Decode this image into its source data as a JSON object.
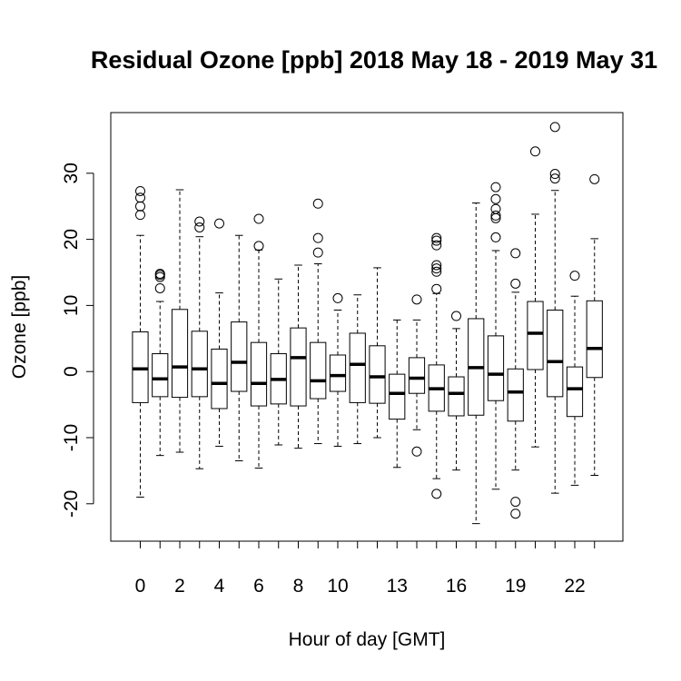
{
  "chart_data": {
    "type": "boxplot",
    "title": "Residual Ozone [ppb] 2018 May 18 - 2019 May 31",
    "xlabel": "Hour of day [GMT]",
    "ylabel": "Ozone [ppb]",
    "ylim": [
      -25.5,
      39
    ],
    "y_ticks": [
      -20,
      -10,
      0,
      10,
      20,
      30
    ],
    "y_tick_labels": [
      "-20",
      "-10",
      "0",
      "10",
      "20",
      "30"
    ],
    "categories": [
      "0",
      "1",
      "2",
      "3",
      "4",
      "5",
      "6",
      "7",
      "8",
      "9",
      "10",
      "11",
      "12",
      "13",
      "14",
      "15",
      "16",
      "17",
      "18",
      "19",
      "20",
      "21",
      "22",
      "23"
    ],
    "x_tick_labels": [
      "0",
      "",
      "2",
      "",
      "4",
      "",
      "6",
      "",
      "8",
      "",
      "10",
      "",
      "",
      "13",
      "",
      "",
      "16",
      "",
      "",
      "19",
      "",
      "",
      "22",
      ""
    ],
    "boxes": [
      {
        "lw": -19,
        "q1": -4.7,
        "med": 0.4,
        "q3": 6.0,
        "uw": 20.6,
        "out": [
          23.7,
          25.0,
          26.3,
          27.3
        ]
      },
      {
        "lw": -12.7,
        "q1": -3.8,
        "med": -1.1,
        "q3": 2.7,
        "uw": 10.6,
        "out": [
          12.6,
          14.3,
          14.6,
          14.8
        ]
      },
      {
        "lw": -12.2,
        "q1": -3.9,
        "med": 0.7,
        "q3": 9.4,
        "uw": 27.5,
        "out": []
      },
      {
        "lw": -14.7,
        "q1": -3.8,
        "med": 0.4,
        "q3": 6.1,
        "uw": 20.4,
        "out": [
          21.8,
          22.7
        ]
      },
      {
        "lw": -11.3,
        "q1": -5.6,
        "med": -1.8,
        "q3": 3.4,
        "uw": 11.9,
        "out": [
          22.4
        ]
      },
      {
        "lw": -13.5,
        "q1": -3.0,
        "med": 1.4,
        "q3": 7.5,
        "uw": 20.6,
        "out": []
      },
      {
        "lw": -14.6,
        "q1": -5.2,
        "med": -1.8,
        "q3": 4.4,
        "uw": 18.4,
        "out": [
          19.0,
          23.1
        ]
      },
      {
        "lw": -11.1,
        "q1": -4.9,
        "med": -1.2,
        "q3": 2.7,
        "uw": 14.0,
        "out": []
      },
      {
        "lw": -11.6,
        "q1": -5.2,
        "med": 2.1,
        "q3": 6.6,
        "uw": 16.1,
        "out": []
      },
      {
        "lw": -10.9,
        "q1": -4.1,
        "med": -1.4,
        "q3": 4.4,
        "uw": 16.3,
        "out": [
          18.0,
          20.2,
          25.4
        ]
      },
      {
        "lw": -11.3,
        "q1": -3.0,
        "med": -0.6,
        "q3": 2.5,
        "uw": 9.3,
        "out": [
          11.1
        ]
      },
      {
        "lw": -10.9,
        "q1": -4.7,
        "med": 1.1,
        "q3": 5.8,
        "uw": 11.6,
        "out": []
      },
      {
        "lw": -10.0,
        "q1": -4.8,
        "med": -0.8,
        "q3": 3.9,
        "uw": 15.7,
        "out": []
      },
      {
        "lw": -14.5,
        "q1": -7.2,
        "med": -3.3,
        "q3": -0.4,
        "uw": 7.8,
        "out": []
      },
      {
        "lw": -8.8,
        "q1": -3.3,
        "med": -1.0,
        "q3": 2.1,
        "uw": 7.8,
        "out": [
          10.9,
          -12.1
        ]
      },
      {
        "lw": -16.2,
        "q1": -6.0,
        "med": -2.6,
        "q3": 1.0,
        "uw": 11.8,
        "out": [
          12.5,
          15.1,
          15.6,
          16.1,
          19.1,
          19.8,
          20.2,
          -18.5
        ]
      },
      {
        "lw": -14.9,
        "q1": -6.7,
        "med": -3.3,
        "q3": -0.8,
        "uw": 6.5,
        "out": [
          8.4
        ]
      },
      {
        "lw": -23.0,
        "q1": -6.6,
        "med": 0.6,
        "q3": 8.0,
        "uw": 25.5,
        "out": []
      },
      {
        "lw": -17.8,
        "q1": -4.4,
        "med": -0.4,
        "q3": 5.4,
        "uw": 18.3,
        "out": [
          20.3,
          23.2,
          23.6,
          24.6,
          26.1,
          27.9
        ]
      },
      {
        "lw": -14.9,
        "q1": -7.5,
        "med": -3.1,
        "q3": 0.4,
        "uw": 12.0,
        "out": [
          13.3,
          17.9,
          -19.7,
          -21.5
        ]
      },
      {
        "lw": -11.4,
        "q1": 0.3,
        "med": 5.8,
        "q3": 10.6,
        "uw": 23.8,
        "out": [
          33.3
        ]
      },
      {
        "lw": -18.4,
        "q1": -3.8,
        "med": 1.5,
        "q3": 9.3,
        "uw": 27.4,
        "out": [
          29.2,
          29.9,
          37.0
        ]
      },
      {
        "lw": -17.2,
        "q1": -6.8,
        "med": -2.6,
        "q3": 0.7,
        "uw": 11.4,
        "out": [
          14.5
        ]
      },
      {
        "lw": -15.7,
        "q1": -0.9,
        "med": 3.5,
        "q3": 10.7,
        "uw": 20.1,
        "out": [
          29.1
        ]
      }
    ],
    "grid": false,
    "legend": "none"
  }
}
